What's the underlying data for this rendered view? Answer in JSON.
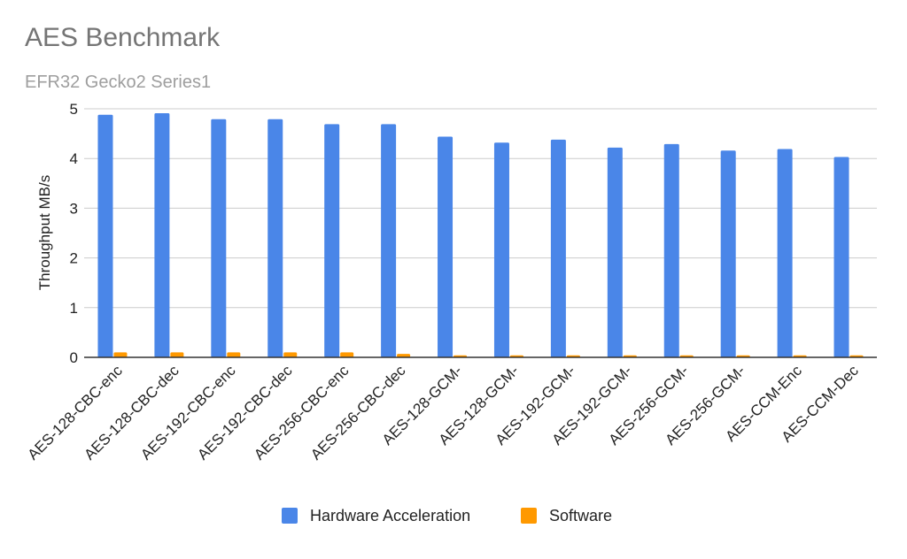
{
  "chart_data": {
    "type": "bar",
    "title": "AES Benchmark",
    "subtitle": "EFR32 Gecko2 Series1",
    "xlabel": "",
    "ylabel": "Throughput MB/s",
    "ylim": [
      0,
      5
    ],
    "yticks": [
      0,
      1,
      2,
      3,
      4,
      5
    ],
    "grid": true,
    "legend_position": "bottom",
    "categories": [
      "AES-128-CBC-enc",
      "AES-128-CBC-dec",
      "AES-192-CBC-enc",
      "AES-192-CBC-dec",
      "AES-256-CBC-enc",
      "AES-256-CBC-dec",
      "AES-128-GCM-",
      "AES-128-GCM-",
      "AES-192-GCM-",
      "AES-192-GCM-",
      "AES-256-GCM-",
      "AES-256-GCM-",
      "AES-CCM-Enc",
      "AES-CCM-Dec"
    ],
    "series": [
      {
        "name": "Hardware Acceleration",
        "color": "#4a86e8",
        "values": [
          4.88,
          4.91,
          4.79,
          4.79,
          4.69,
          4.69,
          4.44,
          4.32,
          4.38,
          4.22,
          4.29,
          4.16,
          4.19,
          4.03
        ]
      },
      {
        "name": "Software",
        "color": "#ff9900",
        "values": [
          0.1,
          0.1,
          0.1,
          0.1,
          0.1,
          0.07,
          0.04,
          0.04,
          0.04,
          0.04,
          0.04,
          0.04,
          0.04,
          0.04
        ]
      }
    ]
  }
}
